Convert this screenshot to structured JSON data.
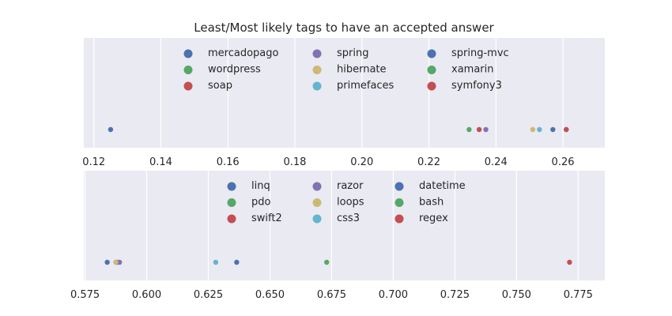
{
  "chart_data": {
    "type": "scatter",
    "title": "Least/Most likely tags to have an accepted answer",
    "grid": true,
    "legend_position": "upper-center",
    "panels": [
      {
        "xlim": [
          0.117,
          0.2725
        ],
        "ticks": [
          0.12,
          0.14,
          0.16,
          0.18,
          0.2,
          0.22,
          0.24,
          0.26
        ],
        "tick_labels": [
          "0.12",
          "0.14",
          "0.16",
          "0.18",
          "0.20",
          "0.22",
          "0.24",
          "0.26"
        ],
        "series": [
          {
            "name": "mercadopago",
            "x": 0.125,
            "color": "#4c72b0"
          },
          {
            "name": "wordpress",
            "x": 0.232,
            "color": "#55a868"
          },
          {
            "name": "soap",
            "x": 0.235,
            "color": "#c44e52"
          },
          {
            "name": "spring",
            "x": 0.237,
            "color": "#8172b2"
          },
          {
            "name": "hibernate",
            "x": 0.251,
            "color": "#ccb974"
          },
          {
            "name": "primefaces",
            "x": 0.253,
            "color": "#64b5cd"
          },
          {
            "name": "spring-mvc",
            "x": 0.257,
            "color": "#4c72b0"
          },
          {
            "name": "xamarin",
            "x": 0.261,
            "color": "#55a868"
          },
          {
            "name": "symfony3",
            "x": 0.261,
            "color": "#c44e52"
          }
        ]
      },
      {
        "xlim": [
          0.5745,
          0.7858
        ],
        "ticks": [
          0.575,
          0.6,
          0.625,
          0.65,
          0.675,
          0.7,
          0.725,
          0.75,
          0.775
        ],
        "tick_labels": [
          "0.575",
          "0.600",
          "0.625",
          "0.650",
          "0.675",
          "0.700",
          "0.725",
          "0.750",
          "0.775"
        ],
        "series": [
          {
            "name": "linq",
            "x": 0.584,
            "color": "#4c72b0"
          },
          {
            "name": "pdo",
            "x": 0.5875,
            "color": "#55a868"
          },
          {
            "name": "swift2",
            "x": 0.588,
            "color": "#c44e52"
          },
          {
            "name": "razor",
            "x": 0.589,
            "color": "#8172b2"
          },
          {
            "name": "loops",
            "x": 0.5875,
            "color": "#ccb974"
          },
          {
            "name": "css3",
            "x": 0.628,
            "color": "#64b5cd"
          },
          {
            "name": "datetime",
            "x": 0.6365,
            "color": "#4c72b0"
          },
          {
            "name": "bash",
            "x": 0.673,
            "color": "#55a868"
          },
          {
            "name": "regex",
            "x": 0.7715,
            "color": "#c44e52"
          }
        ]
      }
    ]
  }
}
